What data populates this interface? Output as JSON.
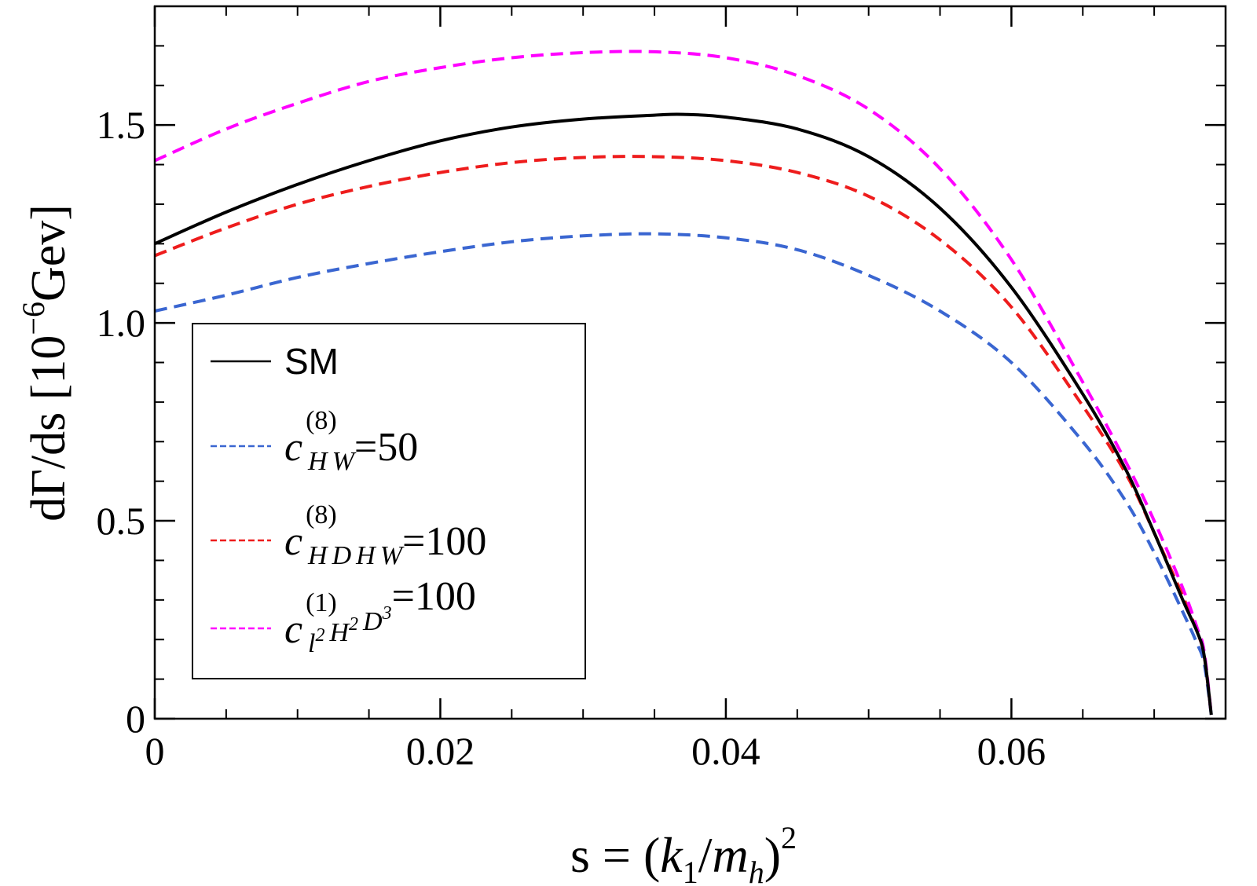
{
  "chart_data": {
    "type": "line",
    "xlabel": {
      "main": "s = (",
      "k": "k",
      "k_sub": "1",
      "slash": "/",
      "m": "m",
      "m_sub": "h",
      "close": ")",
      "sup": "2"
    },
    "ylabel": {
      "main": "dΓ/ds [10",
      "exp": "−6",
      "unit": "Gev]"
    },
    "xlim": [
      0,
      0.075
    ],
    "ylim": [
      0,
      1.8
    ],
    "x_ticks": [
      {
        "value": 0,
        "label": "0"
      },
      {
        "value": 0.02,
        "label": "0.02"
      },
      {
        "value": 0.04,
        "label": "0.04"
      },
      {
        "value": 0.06,
        "label": "0.06"
      }
    ],
    "y_ticks": [
      {
        "value": 0,
        "label": "0"
      },
      {
        "value": 0.5,
        "label": "0.5"
      },
      {
        "value": 1.0,
        "label": "1.0"
      },
      {
        "value": 1.5,
        "label": "1.5"
      }
    ],
    "x_minor_step": 0.005,
    "y_minor_step": 0.1,
    "legend_position": "lower-left",
    "series": [
      {
        "name": "SM",
        "color": "#000000",
        "dashed": false,
        "x": [
          0,
          0.005,
          0.01,
          0.015,
          0.02,
          0.025,
          0.03,
          0.035,
          0.037,
          0.04,
          0.045,
          0.05,
          0.055,
          0.06,
          0.065,
          0.068,
          0.07,
          0.072,
          0.073,
          0.0735,
          0.074
        ],
        "y": [
          1.2,
          1.28,
          1.35,
          1.41,
          1.46,
          1.495,
          1.515,
          1.525,
          1.527,
          1.52,
          1.49,
          1.42,
          1.29,
          1.09,
          0.82,
          0.63,
          0.47,
          0.3,
          0.22,
          0.16,
          0.01
        ]
      },
      {
        "name": "c_HW^(8)=50",
        "color": "#3a66d1",
        "dashed": true,
        "x": [
          0,
          0.005,
          0.01,
          0.015,
          0.02,
          0.025,
          0.03,
          0.035,
          0.04,
          0.045,
          0.05,
          0.055,
          0.06,
          0.065,
          0.068,
          0.07,
          0.072,
          0.073,
          0.0735,
          0.074
        ],
        "y": [
          1.03,
          1.07,
          1.115,
          1.15,
          1.18,
          1.205,
          1.22,
          1.225,
          1.215,
          1.185,
          1.12,
          1.03,
          0.9,
          0.7,
          0.55,
          0.42,
          0.27,
          0.19,
          0.14,
          0.01
        ]
      },
      {
        "name": "c_HDHW^(8)=100",
        "color": "#ee1c1c",
        "dashed": true,
        "x": [
          0,
          0.005,
          0.01,
          0.015,
          0.02,
          0.025,
          0.03,
          0.035,
          0.04,
          0.045,
          0.05,
          0.055,
          0.06,
          0.065,
          0.068,
          0.07,
          0.072,
          0.073,
          0.0735,
          0.074
        ],
        "y": [
          1.17,
          1.24,
          1.3,
          1.345,
          1.38,
          1.405,
          1.418,
          1.42,
          1.41,
          1.38,
          1.32,
          1.21,
          1.04,
          0.79,
          0.62,
          0.47,
          0.31,
          0.22,
          0.16,
          0.01
        ]
      },
      {
        "name": "c_l2H2D3^(1)=100",
        "color": "#ff00ff",
        "dashed": true,
        "x": [
          0,
          0.005,
          0.01,
          0.015,
          0.02,
          0.025,
          0.03,
          0.035,
          0.04,
          0.045,
          0.05,
          0.055,
          0.06,
          0.065,
          0.068,
          0.07,
          0.072,
          0.073,
          0.0735,
          0.074
        ],
        "y": [
          1.41,
          1.49,
          1.555,
          1.61,
          1.645,
          1.67,
          1.683,
          1.685,
          1.67,
          1.625,
          1.54,
          1.39,
          1.16,
          0.85,
          0.65,
          0.5,
          0.33,
          0.23,
          0.17,
          0.01
        ]
      }
    ],
    "legend": [
      {
        "label": "SM",
        "sym": "",
        "sup": "",
        "sub": [],
        "eq": ""
      },
      {
        "label": "",
        "sym": "c",
        "sup": "(8)",
        "sub": [
          {
            "t": "H",
            "s": ""
          },
          {
            "t": "W",
            "s": ""
          }
        ],
        "eq": "=50"
      },
      {
        "label": "",
        "sym": "c",
        "sup": "(8)",
        "sub": [
          {
            "t": "H",
            "s": ""
          },
          {
            "t": "D",
            "s": ""
          },
          {
            "t": "H",
            "s": ""
          },
          {
            "t": "W",
            "s": ""
          }
        ],
        "eq": "=100"
      },
      {
        "label": "",
        "sym": "c",
        "sup": "(1)",
        "sub": [
          {
            "t": "l",
            "s": "2"
          },
          {
            "t": "H",
            "s": "2"
          },
          {
            "t": "D",
            "s": "3"
          }
        ],
        "eq": "=100"
      }
    ]
  }
}
